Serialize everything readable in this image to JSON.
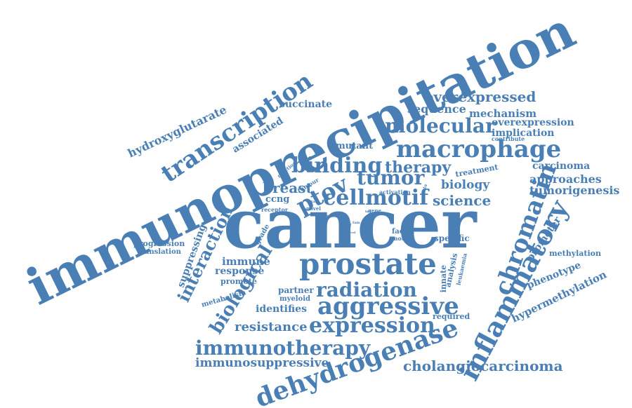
{
  "color": "#4a7fb5",
  "words": {
    "immunoprecipitation": "immunoprecipitation",
    "cancer": "cancer",
    "prostate": "prostate",
    "dehydrogenase": "dehydrogenase",
    "inflammatory": "inflammatory",
    "chromatin": "chromatin",
    "macrophage": "macrophage",
    "aggressive": "aggressive",
    "transcription": "transcription",
    "cellmotif": "cellmotif",
    "binding": "binding",
    "expression": "expression",
    "immunotherapy": "immunotherapy",
    "radiation": "radiation",
    "molecular": "molecular",
    "ptov": "ptov",
    "tumor": "tumor",
    "biological": "biological",
    "interaction": "interaction",
    "therapy": "therapy",
    "breast": "breast",
    "science": "science",
    "overexpressed": "overexpressed",
    "cholangiocarcinoma": "cholangiocarcinoma",
    "immunosuppressive": "immunosuppressive",
    "resistance": "resistance",
    "hydroxyglutarate": "hydroxyglutarate",
    "associated": "associated",
    "succinate": "succinate",
    "sequence": "sequence",
    "mechanism": "mechanism",
    "overexpression": "overexpression",
    "implication": "implication",
    "contribute": "contribute",
    "mutant": "mutant",
    "carcinoma": "carcinoma",
    "approaches": "approaches",
    "tumorigenesis": "tumorigenesis",
    "biology": "biology",
    "treatment": "treatment",
    "promoter": "promoter",
    "methylation": "methylation",
    "phenotype": "phenotype",
    "hypermethylation": "hypermethylation",
    "ccng": "ccng",
    "immune": "immune",
    "response": "response",
    "promote": "promote",
    "metabolism": "metabolism",
    "partner": "partner",
    "myeloid": "myeloid",
    "identifies": "identifies",
    "suppressing": "suppressing",
    "progression": "progression",
    "translation": "translation",
    "grade": "grade",
    "specific": "specific",
    "factor": "factor",
    "mouse": "mouse",
    "innate": "innate",
    "analysis": "analysis",
    "leukaemia": "leukaemia",
    "required": "required",
    "reaction": "reaction",
    "tumour": "tumour",
    "activation": "activation",
    "novel": "novel",
    "state": "state",
    "receptor": "receptor",
    "gene": "gene",
    "glioma": "glioma",
    "clinical": "clinical",
    "meta": "meta",
    "level": "level",
    "fam": "fam",
    "colon": "colon",
    "link": "link"
  }
}
